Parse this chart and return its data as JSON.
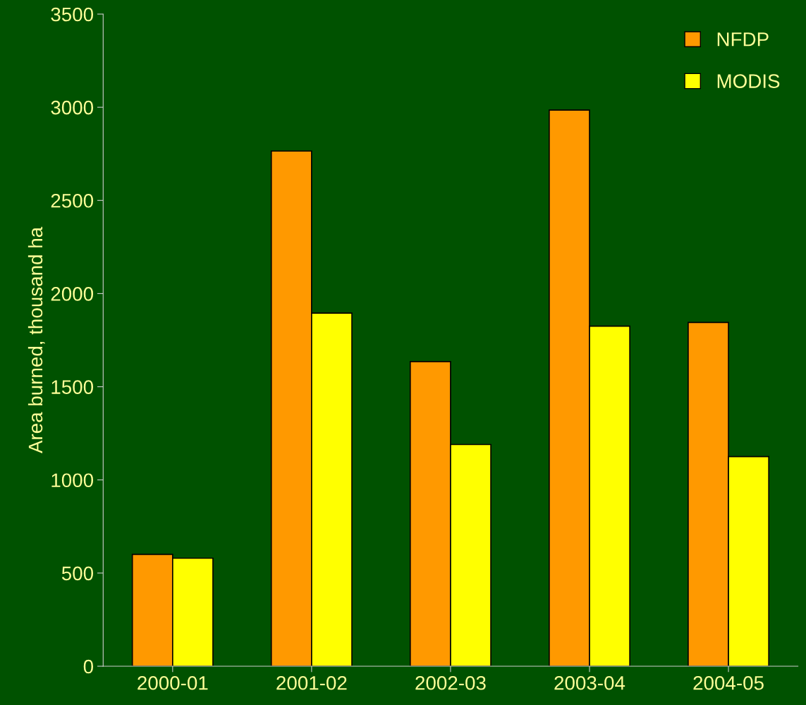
{
  "chart_data": {
    "type": "bar",
    "ylabel": "Area burned, thousand ha",
    "categories": [
      "2000-01",
      "2001-02",
      "2002-03",
      "2003-04",
      "2004-05"
    ],
    "series": [
      {
        "name": "NFDP",
        "color": "#ff9900",
        "values": [
          600,
          2765,
          1635,
          2985,
          1845
        ]
      },
      {
        "name": "MODIS",
        "color": "#ffff00",
        "values": [
          580,
          1895,
          1190,
          1825,
          1125
        ]
      }
    ],
    "ylim": [
      0,
      3500
    ],
    "yticks": [
      0,
      500,
      1000,
      1500,
      2000,
      2500,
      3000,
      3500
    ],
    "grid": false,
    "legend": "top right"
  }
}
